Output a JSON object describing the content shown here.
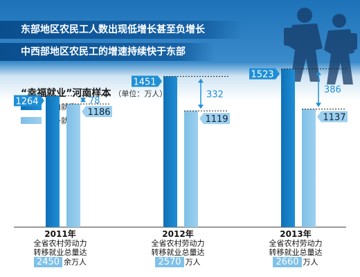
{
  "headlines": [
    "东部地区农民工人数出现低增长甚至负增长",
    "中西部地区农民工的增速持续快于东部"
  ],
  "chart_title": "“幸福就业”河南样本",
  "chart_unit": "（单位：万人）",
  "colors": {
    "in_province": "#1f8fd6",
    "out_province": "#9dd0ef",
    "diff": "#1f8fd6",
    "headline_bg": "#0f5a9c"
  },
  "chart_data": {
    "type": "bar",
    "categories": [
      "2011年",
      "2012年",
      "2013年"
    ],
    "series": [
      {
        "name": "省内就业",
        "values": [
          1264,
          1451,
          1523
        ]
      },
      {
        "name": "省外就业",
        "values": [
          1186,
          1119,
          1137
        ]
      }
    ],
    "differences": [
      78,
      332,
      386
    ],
    "captions": [
      {
        "line1": "全省农村劳动力",
        "line2": "转移就业总量达",
        "total": "2450",
        "unit": "余万人"
      },
      {
        "line1": "全省农村劳动力",
        "line2": "转移就业总量达",
        "total": "2570",
        "unit": "万人"
      },
      {
        "line1": "全省农村劳动力",
        "line2": "转移就业总量达",
        "total": "2660",
        "unit": "万人"
      }
    ],
    "title": "“幸福就业”河南样本",
    "xlabel": "",
    "ylabel": "",
    "legend_position": "top-left",
    "grid": false
  }
}
